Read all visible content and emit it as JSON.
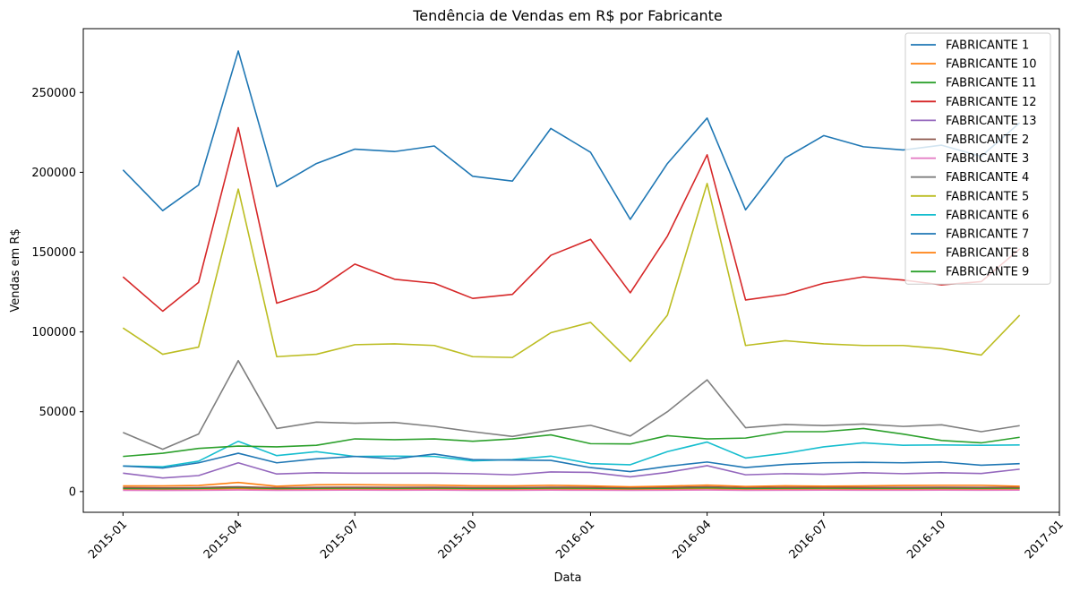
{
  "chart_data": {
    "type": "line",
    "title": "Tendência de Vendas em R$ por Fabricante",
    "xlabel": "Data",
    "ylabel": "Vendas em R$",
    "x": [
      "2015-01",
      "2015-02",
      "2015-03",
      "2015-04",
      "2015-05",
      "2015-06",
      "2015-07",
      "2015-08",
      "2015-09",
      "2015-10",
      "2015-11",
      "2015-12",
      "2016-01",
      "2016-02",
      "2016-03",
      "2016-04",
      "2016-05",
      "2016-06",
      "2016-07",
      "2016-08",
      "2016-09",
      "2016-10",
      "2016-11",
      "2016-12"
    ],
    "xlim": [
      "2014-12-01",
      "2017-01-01"
    ],
    "ylim": [
      -13000,
      290000
    ],
    "x_ticks": [
      "2015-01",
      "2015-04",
      "2015-07",
      "2015-10",
      "2016-01",
      "2016-04",
      "2016-07",
      "2016-10",
      "2017-01"
    ],
    "y_ticks": [
      0,
      50000,
      100000,
      150000,
      200000,
      250000
    ],
    "legend_position": "upper right",
    "grid": false,
    "series": [
      {
        "name": "FABRICANTE 1",
        "color": "#1f77b4",
        "values": [
          201500,
          176000,
          192000,
          276000,
          191000,
          205500,
          214500,
          213000,
          216500,
          197500,
          194500,
          227500,
          212500,
          170500,
          205500,
          234000,
          176500,
          209000,
          223000,
          216000,
          214000,
          217000,
          210000,
          231000
        ]
      },
      {
        "name": "FABRICANTE 10",
        "color": "#ff7f0e",
        "values": [
          1500,
          1400,
          1600,
          1900,
          1500,
          1600,
          1700,
          1600,
          1700,
          1500,
          1500,
          1700,
          1600,
          1400,
          1600,
          1800,
          1500,
          1600,
          1700,
          1600,
          1600,
          1700,
          1600,
          1700
        ]
      },
      {
        "name": "FABRICANTE 11",
        "color": "#2ca02c",
        "values": [
          2000,
          1800,
          2000,
          2500,
          1900,
          2100,
          2200,
          2100,
          2200,
          2000,
          2000,
          2200,
          2100,
          1900,
          2100,
          2400,
          2000,
          2100,
          2200,
          2100,
          2100,
          2200,
          2100,
          2200
        ]
      },
      {
        "name": "FABRICANTE 12",
        "color": "#d62728",
        "values": [
          134500,
          113000,
          131000,
          228000,
          118000,
          126000,
          142500,
          133000,
          130500,
          121000,
          123500,
          148000,
          158000,
          124500,
          160000,
          211000,
          120000,
          123500,
          130500,
          134500,
          132500,
          129500,
          131500,
          152000
        ]
      },
      {
        "name": "FABRICANTE 13",
        "color": "#9467bd",
        "values": [
          11500,
          8500,
          10000,
          18000,
          11000,
          11800,
          11500,
          11500,
          11500,
          11200,
          10500,
          12300,
          12000,
          9200,
          12000,
          16200,
          10500,
          11200,
          10800,
          11800,
          11200,
          11800,
          11300,
          14000
        ]
      },
      {
        "name": "FABRICANTE 2",
        "color": "#8c564b",
        "values": [
          2500,
          2300,
          2500,
          3000,
          2400,
          2600,
          2700,
          2600,
          2700,
          2500,
          2500,
          2700,
          2600,
          2300,
          2600,
          3000,
          2500,
          2600,
          2700,
          2600,
          2600,
          2700,
          2600,
          2700
        ]
      },
      {
        "name": "FABRICANTE 3",
        "color": "#e377c2",
        "values": [
          800,
          700,
          800,
          1000,
          800,
          850,
          900,
          850,
          900,
          800,
          800,
          900,
          850,
          750,
          850,
          1000,
          800,
          850,
          900,
          850,
          850,
          900,
          850,
          900
        ]
      },
      {
        "name": "FABRICANTE 4",
        "color": "#7f7f7f",
        "values": [
          37000,
          26500,
          36000,
          82000,
          39500,
          43500,
          42800,
          43300,
          40800,
          37500,
          34500,
          38500,
          41500,
          34800,
          50000,
          70000,
          40000,
          42000,
          41300,
          42300,
          40800,
          41800,
          37500,
          41300
        ]
      },
      {
        "name": "FABRICANTE 5",
        "color": "#bcbd22",
        "values": [
          102500,
          86000,
          90500,
          189500,
          84500,
          86000,
          92000,
          92500,
          91500,
          84500,
          84000,
          99500,
          106000,
          81500,
          110500,
          193000,
          91500,
          94500,
          92500,
          91500,
          91500,
          89500,
          85500,
          110500
        ]
      },
      {
        "name": "FABRICANTE 6",
        "color": "#17becf",
        "values": [
          16000,
          15500,
          19000,
          31500,
          22500,
          25000,
          22000,
          22200,
          22000,
          19200,
          20000,
          22200,
          17500,
          16800,
          25000,
          31000,
          21000,
          24000,
          28000,
          30500,
          29000,
          29200,
          29000,
          29200
        ]
      },
      {
        "name": "FABRICANTE 7",
        "color": "#1f77b4",
        "values": [
          16000,
          14700,
          18000,
          24000,
          18000,
          20500,
          22000,
          20500,
          23500,
          20000,
          19700,
          19500,
          15000,
          12500,
          15800,
          18500,
          15000,
          17000,
          18000,
          18300,
          18000,
          18500,
          16500,
          17500
        ]
      },
      {
        "name": "FABRICANTE 8",
        "color": "#ff7f0e",
        "values": [
          3500,
          3500,
          3800,
          5700,
          3300,
          4200,
          4300,
          4100,
          4000,
          3600,
          3500,
          3900,
          3500,
          3000,
          3400,
          4000,
          3200,
          3600,
          3400,
          3500,
          3800,
          3900,
          3900,
          3300
        ]
      },
      {
        "name": "FABRICANTE 9",
        "color": "#2ca02c",
        "values": [
          22000,
          24000,
          27000,
          28500,
          28000,
          29000,
          33000,
          32500,
          33000,
          31500,
          33000,
          35500,
          30000,
          29800,
          35000,
          33000,
          33500,
          37500,
          37500,
          39500,
          36000,
          32000,
          30500,
          34000
        ]
      }
    ]
  }
}
